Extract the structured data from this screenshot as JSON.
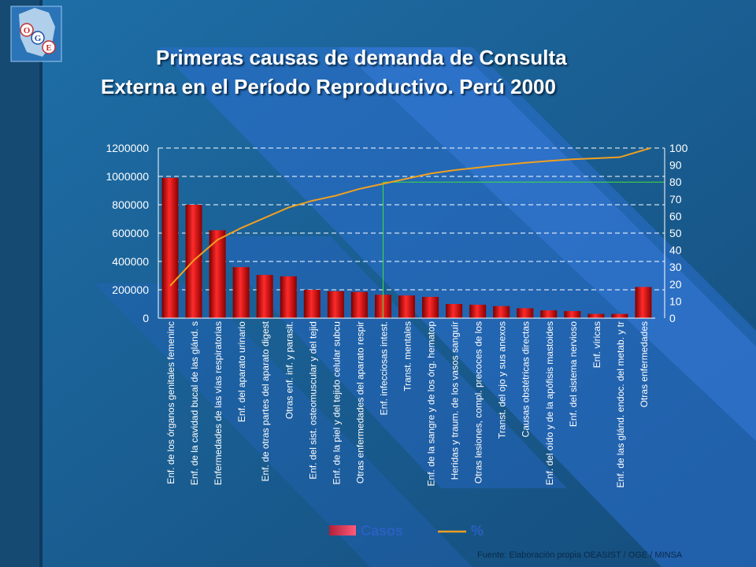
{
  "slide": {
    "title_line1": "Primeras causas de demanda de Consulta",
    "title_line2": "Externa en el Período Reproductivo. Perú 2000",
    "source": "Fuente: Elaboración propia OEASIST / OGE / MINSA",
    "logo_letters": [
      "O",
      "G",
      "E"
    ],
    "colors": {
      "background": "#1a5a8c",
      "bar": "#d40000",
      "line": "#f0a020",
      "title": "#ffffff"
    }
  },
  "chart_data": {
    "type": "bar",
    "title": "",
    "xlabel": "",
    "ylabel": "",
    "ylim": [
      0,
      1200000
    ],
    "y2lim": [
      0,
      100
    ],
    "yticks": [
      "0",
      "200000",
      "400000",
      "600000",
      "800000",
      "1000000",
      "1200000"
    ],
    "y2ticks": [
      "0",
      "10",
      "20",
      "30",
      "40",
      "50",
      "60",
      "70",
      "80",
      "90",
      "100"
    ],
    "grid": true,
    "legend": "bottom",
    "categories": [
      "Enf. de los órganos genitales femeninc",
      "Enf. de la cavidad bucal de las glánd. s",
      "Enfermedades de las vías respiratorias",
      "Enf. del aparato urinario",
      "Enf. de otras partes del aparato digest",
      "Otras enf. inf. y parasit.",
      "Enf. del sist. osteomuscular y del tejid",
      "Enf. de la piel y del tejido celular subcu",
      "Otras enfermedades del aparato respir",
      "Enf. infecciosas intest.",
      "Transt. mentales",
      "Enf. de la sangre y de los órg. hematop",
      "Heridas y traum. de los vasos sanguír",
      "Otras lesiones, compl. precoces de los",
      "Transt. del ojo y sus anexos",
      "Causas obstétricas directas",
      "Enf. del oído y de la apófisis mastoides",
      "Enf. del sistema nervioso",
      "Enf. víricas",
      "Enf. de las glánd. endoc. del metab. y tr",
      "Otras enfermedades"
    ],
    "series": [
      {
        "name": "Casos",
        "type": "bar",
        "values": [
          990000,
          800000,
          620000,
          360000,
          305000,
          295000,
          200000,
          190000,
          185000,
          165000,
          160000,
          150000,
          100000,
          95000,
          85000,
          70000,
          55000,
          50000,
          30000,
          30000,
          220000
        ]
      },
      {
        "name": "%",
        "type": "line",
        "axis": "right",
        "values": [
          19,
          34,
          46,
          53,
          59,
          65,
          69,
          72,
          76,
          79,
          82,
          85,
          87,
          88.5,
          90,
          91.3,
          92.4,
          93.4,
          94,
          94.6,
          100
        ]
      }
    ],
    "annotations": {
      "highlight_index": 9,
      "highlight_pct": 80
    }
  }
}
